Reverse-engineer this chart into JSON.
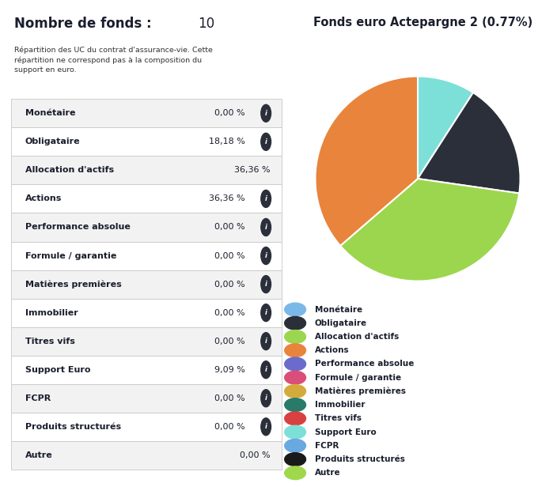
{
  "title_bold": "Nombre de fonds : ",
  "title_number": "10",
  "subtitle": "Répartition des UC du contrat d'assurance-vie. Cette\nrépartition ne correspond pas à la composition du\nsupport en euro.",
  "pie_title": "Fonds euro Actepargne 2 (0.77%)",
  "categories": [
    "Monétaire",
    "Obligataire",
    "Allocation d'actifs",
    "Actions",
    "Performance absolue",
    "Formule / garantie",
    "Matières premières",
    "Immobilier",
    "Titres vifs",
    "Support Euro",
    "FCPR",
    "Produits structurés",
    "Autre"
  ],
  "values": [
    0.0,
    18.18,
    36.36,
    36.36,
    0.0,
    0.0,
    0.0,
    0.0,
    0.0,
    9.09,
    0.0,
    0.0,
    0.0
  ],
  "value_labels": [
    "0,00 %",
    "18,18 %",
    "36,36 %",
    "36,36 %",
    "0,00 %",
    "0,00 %",
    "0,00 %",
    "0,00 %",
    "0,00 %",
    "9,09 %",
    "0,00 %",
    "0,00 %",
    "0,00 %"
  ],
  "has_info": [
    true,
    true,
    false,
    true,
    true,
    true,
    true,
    true,
    true,
    true,
    true,
    true,
    false
  ],
  "colors": [
    "#7ab8e8",
    "#2b2f3a",
    "#9cd64e",
    "#e8843c",
    "#6b6bcc",
    "#d94f7a",
    "#d4aa3c",
    "#2a7a6a",
    "#d94040",
    "#7de0d8",
    "#6aa8e0",
    "#1a1a1a",
    "#a0d84c"
  ],
  "bg_color": "#ffffff",
  "table_bg_odd": "#f2f2f2",
  "table_bg_even": "#ffffff",
  "table_text_color": "#1a1e2d",
  "border_color": "#c8c8c8"
}
